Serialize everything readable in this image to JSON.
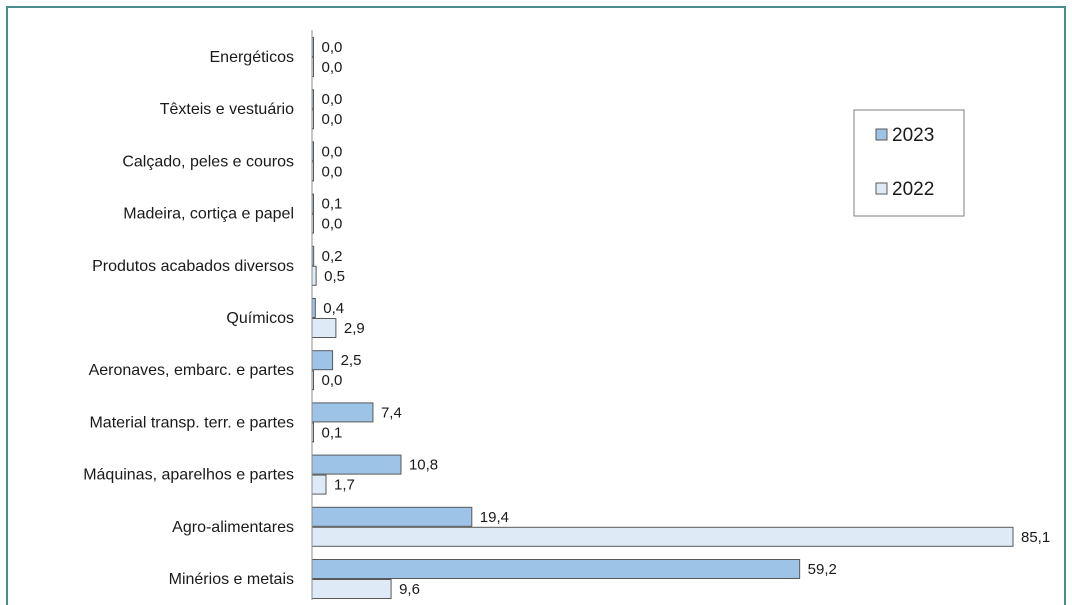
{
  "chart_data": {
    "type": "bar",
    "orientation": "horizontal",
    "categories": [
      "Energéticos",
      "Têxteis e vestuário",
      "Calçado, peles e couros",
      "Madeira, cortiça e papel",
      "Produtos acabados diversos",
      "Químicos",
      "Aeronaves, embarc. e partes",
      "Material transp. terr. e partes",
      "Máquinas, aparelhos e partes",
      "Agro-alimentares",
      "Minérios e metais"
    ],
    "series": [
      {
        "name": "2023",
        "color": "#9dc3e6",
        "values": [
          0.0,
          0.0,
          0.0,
          0.1,
          0.2,
          0.4,
          2.5,
          7.4,
          10.8,
          19.4,
          59.2
        ],
        "labels": [
          "0,0",
          "0,0",
          "0,0",
          "0,1",
          "0,2",
          "0,4",
          "2,5",
          "7,4",
          "10,8",
          "19,4",
          "59,2"
        ]
      },
      {
        "name": "2022",
        "color": "#deebf7",
        "values": [
          0.0,
          0.0,
          0.0,
          0.0,
          0.5,
          2.9,
          0.0,
          0.1,
          1.7,
          85.1,
          9.6
        ],
        "labels": [
          "0,0",
          "0,0",
          "0,0",
          "0,0",
          "0,5",
          "2,9",
          "0,0",
          "0,1",
          "1,7",
          "85,1",
          "9,6"
        ]
      }
    ],
    "title": "",
    "xlabel": "",
    "ylabel": "",
    "xlim": [
      0,
      85.1
    ],
    "grid": false,
    "legend_position": "top-right",
    "frame_color": "#4a8c8c"
  }
}
